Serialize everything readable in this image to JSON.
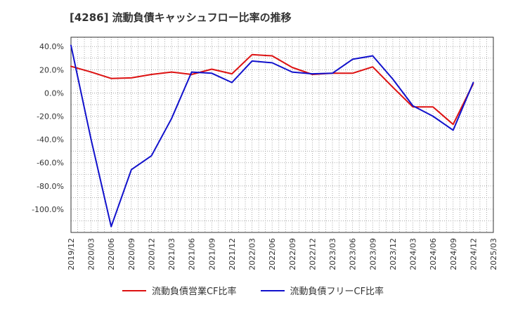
{
  "chart_data": {
    "type": "line",
    "title": "[4286]  流動負債キャッシュフロー比率の推移",
    "xlabel": "",
    "ylabel": "",
    "x_ticks": [
      "2019/12",
      "2020/03",
      "2020/06",
      "2020/09",
      "2020/12",
      "2021/03",
      "2021/06",
      "2021/09",
      "2021/12",
      "2022/03",
      "2022/06",
      "2022/09",
      "2022/12",
      "2023/03",
      "2023/06",
      "2023/09",
      "2023/12",
      "2024/03",
      "2024/06",
      "2024/09",
      "2024/12",
      "2025/03"
    ],
    "y_ticks": [
      40,
      20,
      0,
      -20,
      -40,
      -60,
      -80,
      -100
    ],
    "y_tick_labels": [
      "40.0%",
      "20.0%",
      "0.0%",
      "-20.0%",
      "-40.0%",
      "-60.0%",
      "-80.0%",
      "-100.0%"
    ],
    "ylim": [
      -120,
      48
    ],
    "grid": true,
    "legend_position": "bottom",
    "series": [
      {
        "name": "流動負債営業CF比率",
        "color": "#dd1111",
        "values": [
          23,
          18,
          12.5,
          13,
          16,
          18,
          16,
          20.5,
          16.5,
          33,
          32,
          22,
          16,
          17,
          17,
          22.5,
          5,
          -12,
          -12,
          -27,
          8
        ]
      },
      {
        "name": "流動負債フリーCF比率",
        "color": "#1111cc",
        "values": [
          41,
          -40,
          -115,
          -66,
          -54,
          -22,
          18,
          17,
          9,
          27.5,
          26,
          18,
          16.5,
          17,
          29,
          32,
          12,
          -11,
          -20,
          -32,
          9
        ]
      }
    ]
  }
}
